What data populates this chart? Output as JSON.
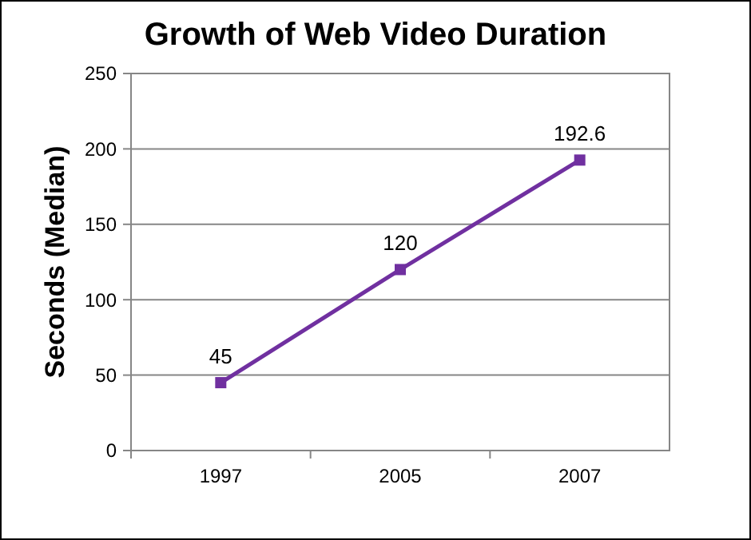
{
  "chart_data": {
    "type": "line",
    "title": "Growth of Web Video Duration",
    "ylabel": "Seconds (Median)",
    "categories": [
      "1997",
      "2005",
      "2007"
    ],
    "series": [
      {
        "color": "#7030a0",
        "values": [
          45,
          120,
          192.6
        ]
      }
    ],
    "ylim": [
      0,
      250
    ],
    "yticks": [
      0,
      50,
      100,
      150,
      200,
      250
    ],
    "grid": "y",
    "marker": "square",
    "line_style": "solid",
    "data_labels": true
  }
}
